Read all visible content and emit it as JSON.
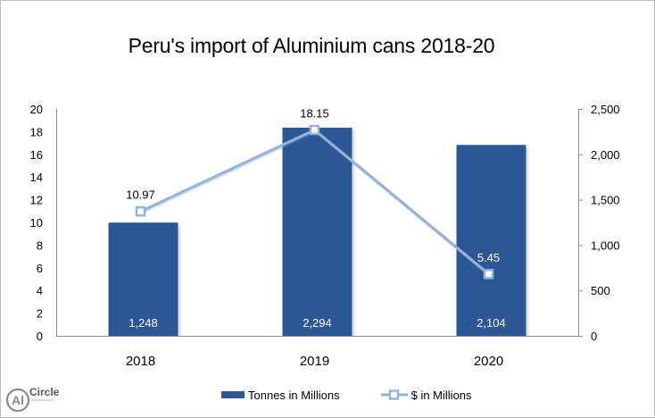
{
  "chart_data": {
    "type": "bar+line",
    "title": "Peru's import of Aluminium cans 2018-20",
    "categories": [
      "2018",
      "2019",
      "2020"
    ],
    "series": [
      {
        "name": "Tonnes in Millions",
        "kind": "bar",
        "axis": "right",
        "values": [
          1248,
          2294,
          2104
        ],
        "labels": [
          "1,248",
          "2,294",
          "2,104"
        ],
        "color": "#2b5797"
      },
      {
        "name": "$ in Millions",
        "kind": "line",
        "axis": "left",
        "values": [
          10.97,
          18.15,
          5.45
        ],
        "labels": [
          "10.97",
          "18.15",
          "5.45"
        ],
        "color": "#95b3d7",
        "marker": "square"
      }
    ],
    "left_axis": {
      "ylim": [
        0,
        20
      ],
      "ticks": [
        "0",
        "2",
        "4",
        "6",
        "8",
        "10",
        "12",
        "14",
        "16",
        "18",
        "20"
      ]
    },
    "right_axis": {
      "ylim": [
        0,
        2500
      ],
      "ticks": [
        "0",
        "500",
        "1,000",
        "1,500",
        "2,000",
        "2,500"
      ]
    },
    "xlabel": "",
    "ylabel": "",
    "grid": false,
    "legend_position": "bottom"
  },
  "legend": {
    "bar_label": "Tonnes in Millions",
    "line_label": "$ in Millions"
  },
  "logo": {
    "text": "Circle",
    "mark": "Al"
  }
}
